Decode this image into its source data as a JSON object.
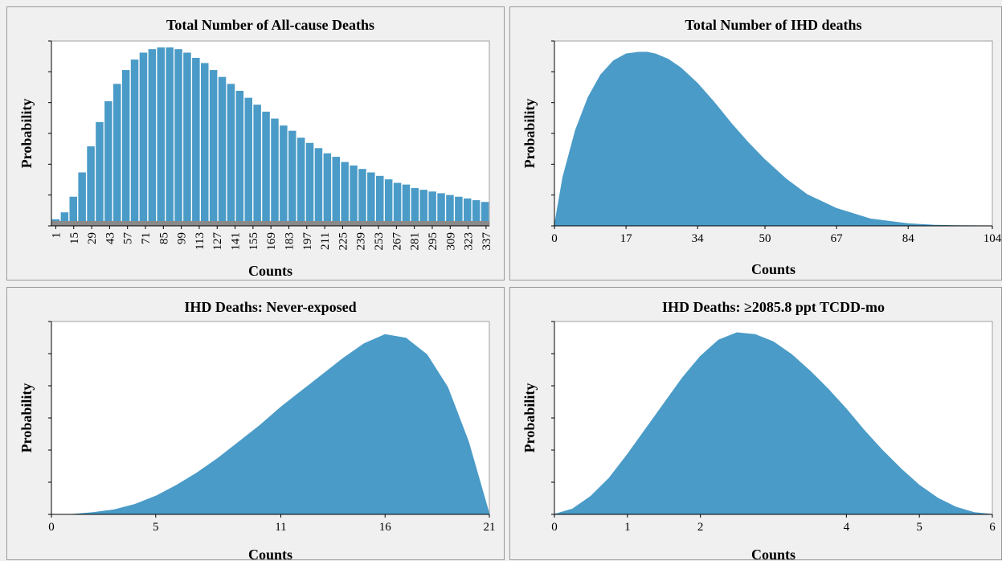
{
  "chart_data": [
    {
      "type": "bar",
      "title": "Total Number of All-cause Deaths",
      "xlabel": "Counts",
      "ylabel": "Probability",
      "xlim": [
        1,
        343
      ],
      "x_ticks": [
        "1",
        "15",
        "29",
        "43",
        "57",
        "71",
        "85",
        "99",
        "113",
        "127",
        "141",
        "155",
        "169",
        "183",
        "197",
        "211",
        "225",
        "239",
        "253",
        "267",
        "281",
        "295",
        "309",
        "323",
        "337"
      ],
      "categories": [
        "1",
        "8",
        "15",
        "22",
        "29",
        "36",
        "43",
        "50",
        "57",
        "64",
        "71",
        "78",
        "85",
        "92",
        "99",
        "106",
        "113",
        "120",
        "127",
        "134",
        "141",
        "148",
        "155",
        "162",
        "169",
        "176",
        "183",
        "190",
        "197",
        "204",
        "211",
        "218",
        "225",
        "232",
        "239",
        "246",
        "253",
        "260",
        "267",
        "274",
        "281",
        "288",
        "295",
        "302",
        "309",
        "316",
        "323",
        "330",
        "337",
        "343"
      ],
      "values": [
        0.01,
        0.05,
        0.14,
        0.28,
        0.43,
        0.57,
        0.69,
        0.79,
        0.87,
        0.93,
        0.97,
        0.99,
        1.0,
        1.0,
        0.99,
        0.97,
        0.94,
        0.91,
        0.87,
        0.83,
        0.79,
        0.75,
        0.71,
        0.67,
        0.63,
        0.59,
        0.55,
        0.52,
        0.48,
        0.45,
        0.42,
        0.39,
        0.37,
        0.34,
        0.32,
        0.3,
        0.28,
        0.26,
        0.24,
        0.22,
        0.21,
        0.19,
        0.18,
        0.17,
        0.16,
        0.15,
        0.14,
        0.13,
        0.12,
        0.11
      ],
      "color": "#4a9bc7"
    },
    {
      "type": "area",
      "title": "Total Number of IHD deaths",
      "xlabel": "Counts",
      "ylabel": "Probability",
      "xlim": [
        0,
        104
      ],
      "x_ticks": [
        "0",
        "17",
        "34",
        "50",
        "67",
        "84",
        "104"
      ],
      "x": [
        0,
        2,
        5,
        8,
        11,
        14,
        17,
        20,
        22,
        24,
        27,
        30,
        34,
        38,
        42,
        46,
        50,
        55,
        60,
        67,
        75,
        84,
        90,
        95,
        104
      ],
      "values": [
        0.0,
        0.28,
        0.55,
        0.74,
        0.87,
        0.95,
        0.99,
        1.0,
        1.0,
        0.99,
        0.96,
        0.91,
        0.82,
        0.71,
        0.59,
        0.48,
        0.38,
        0.27,
        0.18,
        0.1,
        0.04,
        0.012,
        0.004,
        0.001,
        0.0
      ],
      "color": "#4a9bc7"
    },
    {
      "type": "area",
      "title": "IHD Deaths: Never-exposed",
      "xlabel": "Counts",
      "ylabel": "Probability",
      "xlim": [
        0,
        21
      ],
      "x_ticks": [
        "0",
        "5",
        "11",
        "16",
        "21"
      ],
      "x": [
        0,
        1,
        2,
        3,
        4,
        5,
        6,
        7,
        8,
        9,
        10,
        11,
        12,
        13,
        14,
        15,
        16,
        17,
        18,
        19,
        20,
        21
      ],
      "values": [
        0.0,
        0.0,
        0.01,
        0.025,
        0.055,
        0.1,
        0.16,
        0.23,
        0.31,
        0.4,
        0.49,
        0.59,
        0.68,
        0.77,
        0.86,
        0.94,
        0.99,
        0.97,
        0.88,
        0.7,
        0.4,
        0.0
      ],
      "color": "#4a9bc7"
    },
    {
      "type": "area",
      "title": "IHD Deaths: ≥2085.8 ppt TCDD-mo",
      "xlabel": "Counts",
      "ylabel": "Probability",
      "xlim": [
        0,
        6
      ],
      "x_ticks": [
        "0",
        "1",
        "2",
        "4",
        "5",
        "6"
      ],
      "x": [
        0,
        0.25,
        0.5,
        0.75,
        1.0,
        1.25,
        1.5,
        1.75,
        2.0,
        2.25,
        2.5,
        2.75,
        3.0,
        3.25,
        3.5,
        3.75,
        4.0,
        4.25,
        4.5,
        4.75,
        5.0,
        5.25,
        5.5,
        5.75,
        6.0
      ],
      "values": [
        0.0,
        0.03,
        0.1,
        0.2,
        0.33,
        0.47,
        0.61,
        0.75,
        0.87,
        0.96,
        1.0,
        0.99,
        0.95,
        0.88,
        0.79,
        0.69,
        0.58,
        0.46,
        0.35,
        0.25,
        0.16,
        0.09,
        0.04,
        0.01,
        0.0
      ],
      "color": "#4a9bc7"
    }
  ]
}
